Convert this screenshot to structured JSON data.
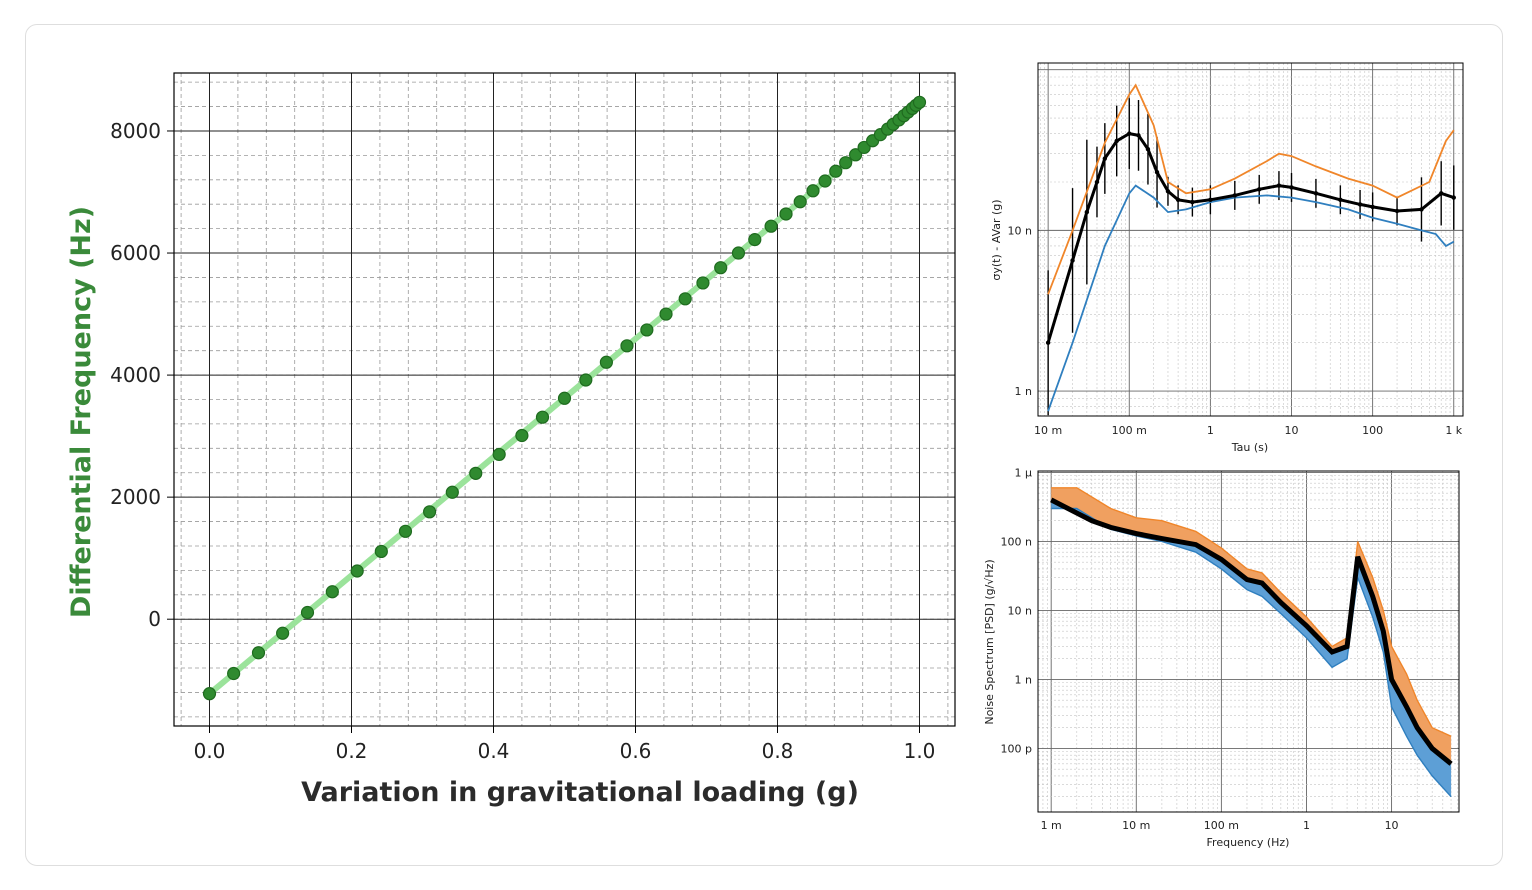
{
  "chart_data": [
    {
      "type": "scatter",
      "xlabel": "Variation in gravitational loading (g)",
      "ylabel": "Differential Frequency (Hz)",
      "xlim": [
        -0.05,
        1.05
      ],
      "ylim": [
        -1750,
        8950
      ],
      "xticks": [
        "0.0",
        "0.2",
        "0.4",
        "0.6",
        "0.8",
        "1.0"
      ],
      "yticks": [
        "0",
        "2000",
        "4000",
        "6000",
        "8000"
      ],
      "grid": true,
      "colors": {
        "marker": "#2f8a2f",
        "line": "#9be39b",
        "ylabel": "#3a8a3a"
      },
      "x": [
        0.0,
        0.034,
        0.069,
        0.103,
        0.138,
        0.173,
        0.208,
        0.242,
        0.276,
        0.31,
        0.342,
        0.375,
        0.408,
        0.44,
        0.469,
        0.5,
        0.53,
        0.559,
        0.588,
        0.616,
        0.643,
        0.67,
        0.695,
        0.72,
        0.745,
        0.768,
        0.791,
        0.812,
        0.832,
        0.85,
        0.867,
        0.882,
        0.896,
        0.91,
        0.922,
        0.934,
        0.945,
        0.955,
        0.963,
        0.971,
        0.978,
        0.984,
        0.99,
        0.995,
        1.0
      ],
      "y": [
        -1220,
        -890,
        -550,
        -230,
        110,
        450,
        790,
        1110,
        1440,
        1760,
        2080,
        2390,
        2700,
        3010,
        3310,
        3620,
        3920,
        4210,
        4480,
        4740,
        5000,
        5250,
        5510,
        5760,
        6000,
        6220,
        6440,
        6640,
        6840,
        7020,
        7180,
        7340,
        7480,
        7610,
        7730,
        7840,
        7940,
        8030,
        8110,
        8180,
        8250,
        8310,
        8370,
        8420,
        8470
      ]
    },
    {
      "type": "line",
      "xlabel": "Tau (s)",
      "ylabel": "σy(t) - AVar (g)",
      "xscale": "log",
      "yscale": "log",
      "xticks": [
        "10 m",
        "100 m",
        "1",
        "10",
        "100",
        "1 k"
      ],
      "yticks": [
        "1 n",
        "10 n"
      ],
      "colors": {
        "upper": "#f0862a",
        "lower": "#2f7fbf",
        "mean": "#000000"
      },
      "series": [
        {
          "role": "upper",
          "x": [
            0.01,
            0.02,
            0.05,
            0.1,
            0.12,
            0.2,
            0.3,
            0.5,
            1,
            2,
            5,
            7,
            10,
            20,
            50,
            100,
            200,
            500,
            800,
            1000
          ],
          "y": [
            4e-09,
            1e-08,
            3.5e-08,
            7e-08,
            8e-08,
            4.5e-08,
            2e-08,
            1.7e-08,
            1.8e-08,
            2.1e-08,
            2.7e-08,
            3e-08,
            2.9e-08,
            2.5e-08,
            2.1e-08,
            1.9e-08,
            1.6e-08,
            2e-08,
            3.6e-08,
            4.2e-08
          ]
        },
        {
          "role": "lower",
          "x": [
            0.01,
            0.02,
            0.05,
            0.1,
            0.12,
            0.2,
            0.3,
            0.5,
            1,
            2,
            5,
            10,
            20,
            50,
            100,
            200,
            400,
            600,
            800,
            1000
          ],
          "y": [
            7.5e-10,
            2e-09,
            8e-09,
            1.7e-08,
            1.9e-08,
            1.6e-08,
            1.3e-08,
            1.35e-08,
            1.5e-08,
            1.6e-08,
            1.65e-08,
            1.6e-08,
            1.5e-08,
            1.35e-08,
            1.2e-08,
            1.1e-08,
            1e-08,
            9.5e-09,
            8e-09,
            8.5e-09
          ]
        },
        {
          "role": "mean",
          "x": [
            0.01,
            0.02,
            0.03,
            0.04,
            0.05,
            0.07,
            0.1,
            0.13,
            0.17,
            0.22,
            0.3,
            0.4,
            0.6,
            1,
            2,
            4,
            7,
            10,
            20,
            40,
            70,
            100,
            200,
            400,
            700,
            1000
          ],
          "y": [
            2e-09,
            6.5e-09,
            1.3e-08,
            2e-08,
            2.8e-08,
            3.6e-08,
            4e-08,
            3.9e-08,
            3.2e-08,
            2.3e-08,
            1.75e-08,
            1.55e-08,
            1.5e-08,
            1.55e-08,
            1.65e-08,
            1.8e-08,
            1.9e-08,
            1.85e-08,
            1.7e-08,
            1.55e-08,
            1.45e-08,
            1.4e-08,
            1.32e-08,
            1.35e-08,
            1.7e-08,
            1.6e-08
          ]
        }
      ]
    },
    {
      "type": "line",
      "xlabel": "Frequency (Hz)",
      "ylabel": "Noise Spectrum [PSD] (g/√Hz)",
      "xscale": "log",
      "yscale": "log",
      "xticks": [
        "1 m",
        "10 m",
        "100 m",
        "1",
        "10"
      ],
      "yticks": [
        "100 p",
        "1 n",
        "10 n",
        "100 n",
        "1 μ"
      ],
      "colors": {
        "upper": "#f0862a",
        "lower": "#2f7fbf",
        "mean": "#000000"
      },
      "series": [
        {
          "role": "upper",
          "x": [
            0.001,
            0.002,
            0.005,
            0.01,
            0.02,
            0.05,
            0.1,
            0.2,
            0.3,
            0.5,
            1,
            2,
            3,
            4,
            6,
            8,
            10,
            15,
            20,
            30,
            50
          ],
          "y": [
            6e-07,
            6e-07,
            3e-07,
            2.2e-07,
            2e-07,
            1.4e-07,
            8e-08,
            4e-08,
            3.5e-08,
            1.8e-08,
            8e-09,
            3e-09,
            4e-09,
            1e-07,
            3e-08,
            1e-08,
            3e-09,
            1.2e-09,
            5e-10,
            2e-10,
            1.5e-10
          ]
        },
        {
          "role": "lower",
          "x": [
            0.001,
            0.002,
            0.005,
            0.01,
            0.02,
            0.05,
            0.1,
            0.2,
            0.3,
            0.5,
            1,
            2,
            3,
            4,
            6,
            8,
            10,
            15,
            20,
            30,
            50
          ],
          "y": [
            3e-07,
            3e-07,
            1.5e-07,
            1.2e-07,
            1e-07,
            7e-08,
            4e-08,
            2e-08,
            1.6e-08,
            9e-09,
            4e-09,
            1.5e-09,
            2e-09,
            3e-08,
            8e-09,
            2.5e-09,
            4e-10,
            1.5e-10,
            8e-11,
            4e-11,
            2e-11
          ]
        },
        {
          "role": "mean",
          "x": [
            0.001,
            0.003,
            0.005,
            0.01,
            0.02,
            0.05,
            0.1,
            0.2,
            0.3,
            0.5,
            1,
            2,
            3,
            4,
            6,
            8,
            10,
            15,
            20,
            30,
            50
          ],
          "y": [
            4e-07,
            2e-07,
            1.6e-07,
            1.3e-07,
            1.1e-07,
            9e-08,
            5.5e-08,
            2.8e-08,
            2.5e-08,
            1.3e-08,
            6e-09,
            2.5e-09,
            3e-09,
            6e-08,
            1.6e-08,
            5e-09,
            1e-09,
            4e-10,
            2e-10,
            1e-10,
            6e-11
          ]
        }
      ]
    }
  ]
}
